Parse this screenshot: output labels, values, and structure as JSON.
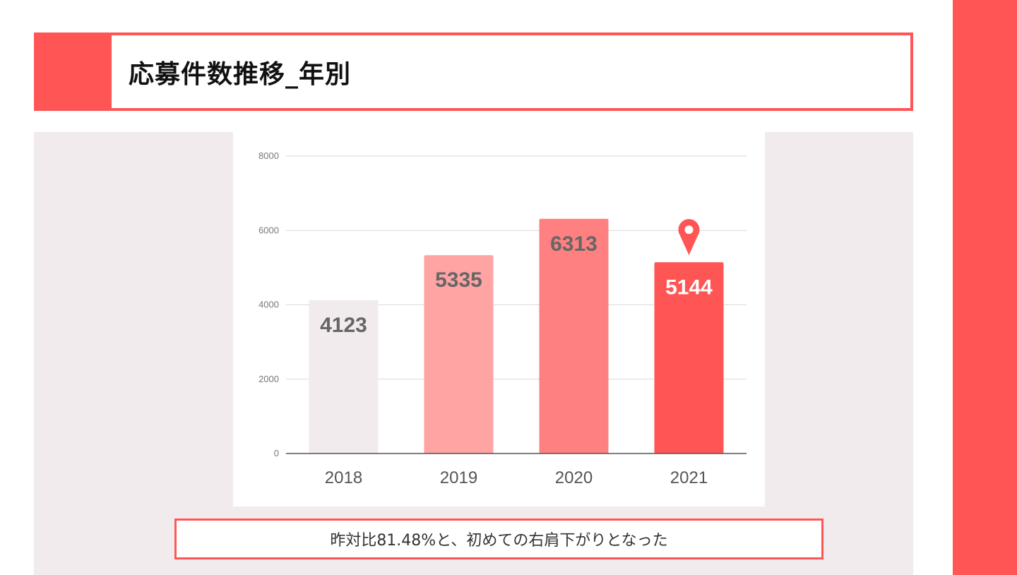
{
  "title": "応募件数推移_年別",
  "note": "昨対比81.48%と、初めての右肩下がりとなった",
  "colors": {
    "accent": "#ff5555",
    "bar_2018": "#f1ebed",
    "bar_2019": "#ffa3a3",
    "bar_2020": "#ff8080",
    "bar_2021": "#ff5555",
    "label_dark": "#666666",
    "label_light": "#ffffff"
  },
  "chart_data": {
    "type": "bar",
    "categories": [
      "2018",
      "2019",
      "2020",
      "2021"
    ],
    "values": [
      4123,
      5335,
      6313,
      5144
    ],
    "data_labels": [
      "4123",
      "5335",
      "6313",
      "5144"
    ],
    "ylim": [
      0,
      8000
    ],
    "yticks": [
      0,
      2000,
      4000,
      6000,
      8000
    ],
    "grid": true,
    "highlight": {
      "category": "2021",
      "icon": "map-pin-icon"
    }
  }
}
